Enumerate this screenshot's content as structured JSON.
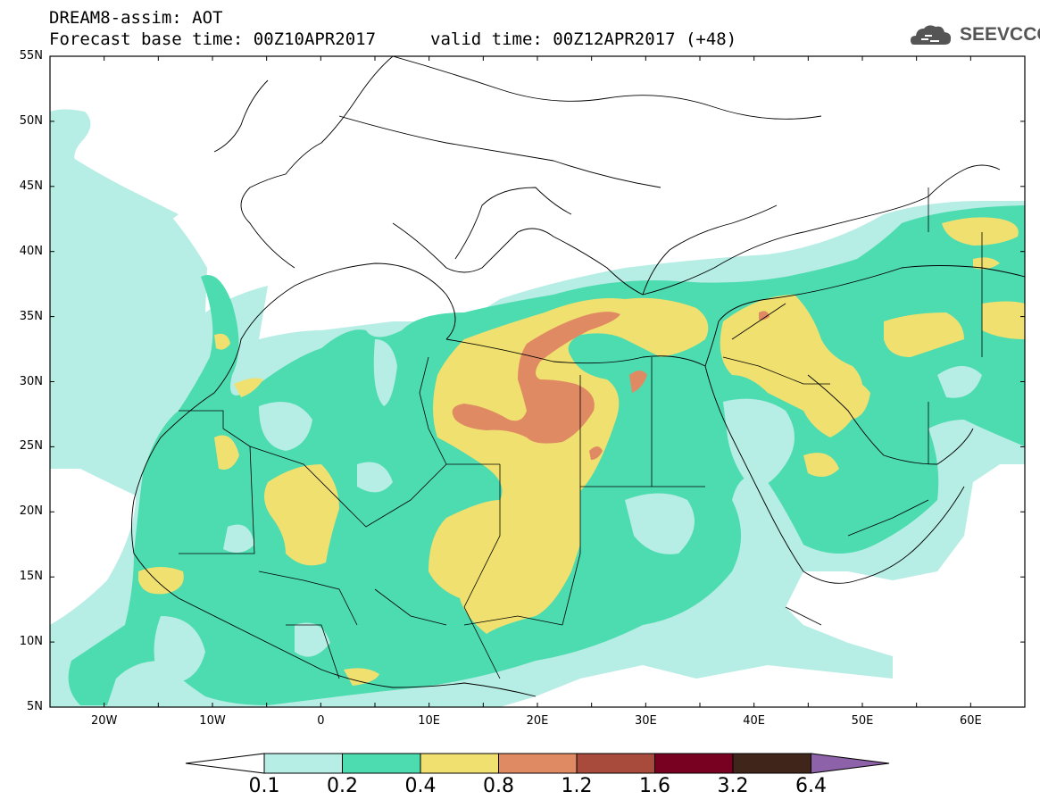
{
  "title": {
    "line1": "DREAM8-assim: AOT",
    "base_time": "Forecast base time: 00Z10APR2017",
    "valid_time": "valid time: 00Z12APR2017 (+48)"
  },
  "logo": {
    "text": "SEEVCCC",
    "icon": "cloud-icon"
  },
  "map": {
    "lat_labels": [
      "55N",
      "50N",
      "45N",
      "40N",
      "35N",
      "30N",
      "25N",
      "20N",
      "15N",
      "10N",
      "5N"
    ],
    "lon_labels": [
      "20W",
      "10W",
      "0",
      "10E",
      "20E",
      "30E",
      "40E",
      "50E",
      "60E"
    ],
    "lon_range": [
      -25,
      65
    ],
    "lat_range": [
      5,
      55
    ]
  },
  "colorbar": {
    "labels": [
      "0.1",
      "0.2",
      "0.4",
      "0.8",
      "1.2",
      "1.6",
      "3.2",
      "6.4"
    ],
    "colors": [
      "#ffffff",
      "#b6ede4",
      "#4ddbb0",
      "#f0e070",
      "#e08a64",
      "#a84a3c",
      "#780020",
      "#40261a",
      "#8e62a8"
    ]
  }
}
